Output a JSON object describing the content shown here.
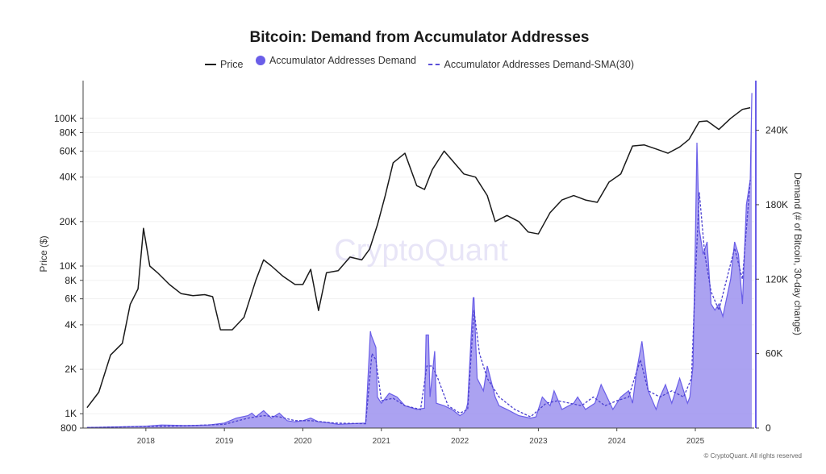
{
  "chart_data": {
    "type": "line",
    "title": "Bitcoin: Demand from Accumulator Addresses",
    "legend": {
      "placement": "top-center",
      "entries": [
        "Price",
        "Accumulator Addresses Demand",
        "Accumulator Addresses Demand-SMA(30)"
      ]
    },
    "ylabel_left": "Price ($)",
    "ylabel_right": "Demand (# of Bitcoin, 30-day change)",
    "watermark": "CryptoQuant",
    "footer": "© CryptoQuant. All rights reserved",
    "colors": {
      "price": "#1a1a1a",
      "demand": "#6a5ee8",
      "demand_fill": "#9c92ee",
      "sma": "#4a3fd0"
    },
    "xlim": [
      2017.2,
      2025.75
    ],
    "x_ticks": [
      {
        "label": "2018",
        "v": 2018.0
      },
      {
        "label": "2019",
        "v": 2019.0
      },
      {
        "label": "2020",
        "v": 2020.0
      },
      {
        "label": "2021",
        "v": 2021.0
      },
      {
        "label": "2022",
        "v": 2022.0
      },
      {
        "label": "2023",
        "v": 2023.0
      },
      {
        "label": "2024",
        "v": 2024.0
      },
      {
        "label": "2025",
        "v": 2025.0
      }
    ],
    "y_left": {
      "scale": "log",
      "range": [
        800,
        180000
      ],
      "ticks": [
        {
          "label": "800",
          "v": 800
        },
        {
          "label": "1K",
          "v": 1000
        },
        {
          "label": "2K",
          "v": 2000
        },
        {
          "label": "4K",
          "v": 4000
        },
        {
          "label": "6K",
          "v": 6000
        },
        {
          "label": "8K",
          "v": 8000
        },
        {
          "label": "10K",
          "v": 10000
        },
        {
          "label": "20K",
          "v": 20000
        },
        {
          "label": "40K",
          "v": 40000
        },
        {
          "label": "60K",
          "v": 60000
        },
        {
          "label": "80K",
          "v": 80000
        },
        {
          "label": "100K",
          "v": 100000
        }
      ]
    },
    "y_right": {
      "scale": "linear",
      "range": [
        0,
        280000
      ],
      "ticks": [
        {
          "label": "0",
          "v": 0
        },
        {
          "label": "60K",
          "v": 60000
        },
        {
          "label": "120K",
          "v": 120000
        },
        {
          "label": "180K",
          "v": 180000
        },
        {
          "label": "240K",
          "v": 240000
        }
      ]
    },
    "series": [
      {
        "name": "Price",
        "axis": "left",
        "x": [
          2017.25,
          2017.4,
          2017.55,
          2017.7,
          2017.8,
          2017.9,
          2017.97,
          2018.05,
          2018.15,
          2018.3,
          2018.45,
          2018.6,
          2018.75,
          2018.85,
          2018.95,
          2019.1,
          2019.25,
          2019.4,
          2019.5,
          2019.6,
          2019.75,
          2019.9,
          2020.0,
          2020.1,
          2020.2,
          2020.3,
          2020.45,
          2020.6,
          2020.75,
          2020.85,
          2020.95,
          2021.05,
          2021.15,
          2021.3,
          2021.45,
          2021.55,
          2021.65,
          2021.8,
          2021.9,
          2022.05,
          2022.2,
          2022.35,
          2022.45,
          2022.6,
          2022.75,
          2022.87,
          2023.0,
          2023.15,
          2023.3,
          2023.45,
          2023.6,
          2023.75,
          2023.9,
          2024.05,
          2024.2,
          2024.35,
          2024.5,
          2024.65,
          2024.8,
          2024.92,
          2025.05,
          2025.15,
          2025.3,
          2025.45,
          2025.6,
          2025.7
        ],
        "values": [
          1100,
          1400,
          2500,
          3000,
          5500,
          7000,
          18000,
          10000,
          9000,
          7500,
          6500,
          6300,
          6400,
          6200,
          3700,
          3700,
          4500,
          8000,
          11000,
          10000,
          8500,
          7500,
          7500,
          9500,
          5000,
          9000,
          9300,
          11500,
          11000,
          13000,
          19000,
          30000,
          50000,
          58000,
          35000,
          33000,
          45000,
          60000,
          52000,
          42000,
          40000,
          30000,
          20000,
          22000,
          20000,
          17000,
          16500,
          23000,
          28000,
          30000,
          28000,
          27000,
          37000,
          42000,
          65000,
          66000,
          62000,
          58000,
          64000,
          72000,
          95000,
          96000,
          84000,
          100000,
          115000,
          118000
        ]
      },
      {
        "name": "Accumulator Addresses Demand",
        "axis": "right",
        "x": [
          2017.25,
          2017.5,
          2017.8,
          2018.0,
          2018.2,
          2018.5,
          2018.8,
          2019.0,
          2019.15,
          2019.3,
          2019.35,
          2019.4,
          2019.5,
          2019.6,
          2019.7,
          2019.8,
          2019.9,
          2020.0,
          2020.1,
          2020.2,
          2020.3,
          2020.45,
          2020.6,
          2020.8,
          2020.86,
          2020.87,
          2020.93,
          2020.95,
          2021.0,
          2021.1,
          2021.2,
          2021.3,
          2021.45,
          2021.55,
          2021.57,
          2021.6,
          2021.62,
          2021.68,
          2021.7,
          2021.8,
          2021.9,
          2022.0,
          2022.05,
          2022.08,
          2022.1,
          2022.17,
          2022.18,
          2022.22,
          2022.3,
          2022.35,
          2022.45,
          2022.5,
          2022.6,
          2022.75,
          2022.9,
          2022.97,
          2023.05,
          2023.15,
          2023.2,
          2023.3,
          2023.45,
          2023.5,
          2023.6,
          2023.72,
          2023.8,
          2023.95,
          2024.05,
          2024.15,
          2024.2,
          2024.25,
          2024.32,
          2024.4,
          2024.5,
          2024.55,
          2024.62,
          2024.7,
          2024.8,
          2024.9,
          2024.93,
          2024.97,
          2025.0,
          2025.02,
          2025.05,
          2025.1,
          2025.15,
          2025.2,
          2025.25,
          2025.3,
          2025.35,
          2025.45,
          2025.5,
          2025.55,
          2025.6,
          2025.65,
          2025.7,
          2025.72
        ],
        "values": [
          500,
          700,
          1200,
          1500,
          2500,
          2000,
          2500,
          4000,
          8000,
          10000,
          12000,
          9000,
          14000,
          8000,
          12000,
          6000,
          5000,
          6000,
          8000,
          5000,
          4500,
          3000,
          3500,
          4000,
          78000,
          75000,
          65000,
          25000,
          20000,
          28000,
          25000,
          18000,
          15000,
          16000,
          75000,
          75000,
          25000,
          62000,
          20000,
          18000,
          15000,
          10000,
          12000,
          15000,
          20000,
          105000,
          105000,
          40000,
          30000,
          50000,
          25000,
          18000,
          15000,
          10000,
          8000,
          9000,
          25000,
          18000,
          30000,
          15000,
          20000,
          25000,
          15000,
          20000,
          35000,
          15000,
          25000,
          30000,
          20000,
          45000,
          70000,
          30000,
          15000,
          25000,
          35000,
          20000,
          40000,
          20000,
          25000,
          50000,
          150000,
          230000,
          160000,
          140000,
          150000,
          100000,
          95000,
          100000,
          90000,
          120000,
          150000,
          140000,
          100000,
          180000,
          200000,
          270000
        ]
      },
      {
        "name": "Accumulator Addresses Demand-SMA(30)",
        "axis": "right",
        "x": [
          2017.25,
          2017.6,
          2018.0,
          2018.5,
          2019.0,
          2019.3,
          2019.5,
          2019.7,
          2019.9,
          2020.1,
          2020.4,
          2020.8,
          2020.88,
          2020.93,
          2021.0,
          2021.15,
          2021.3,
          2021.5,
          2021.58,
          2021.65,
          2021.72,
          2021.85,
          2022.0,
          2022.1,
          2022.18,
          2022.25,
          2022.35,
          2022.5,
          2022.7,
          2022.9,
          2023.1,
          2023.25,
          2023.4,
          2023.55,
          2023.7,
          2023.85,
          2024.0,
          2024.15,
          2024.3,
          2024.4,
          2024.55,
          2024.7,
          2024.85,
          2024.95,
          2025.0,
          2025.05,
          2025.12,
          2025.2,
          2025.3,
          2025.4,
          2025.5,
          2025.6,
          2025.7
        ],
        "values": [
          400,
          800,
          1300,
          1800,
          3000,
          8000,
          10000,
          9000,
          6000,
          6000,
          4000,
          3500,
          60000,
          55000,
          22000,
          24000,
          18000,
          15000,
          50000,
          50000,
          40000,
          18000,
          12000,
          15000,
          95000,
          60000,
          40000,
          25000,
          15000,
          9000,
          20000,
          22000,
          20000,
          18000,
          25000,
          18000,
          22000,
          25000,
          55000,
          30000,
          25000,
          30000,
          25000,
          40000,
          120000,
          190000,
          140000,
          110000,
          95000,
          120000,
          145000,
          120000,
          200000
        ]
      }
    ]
  }
}
